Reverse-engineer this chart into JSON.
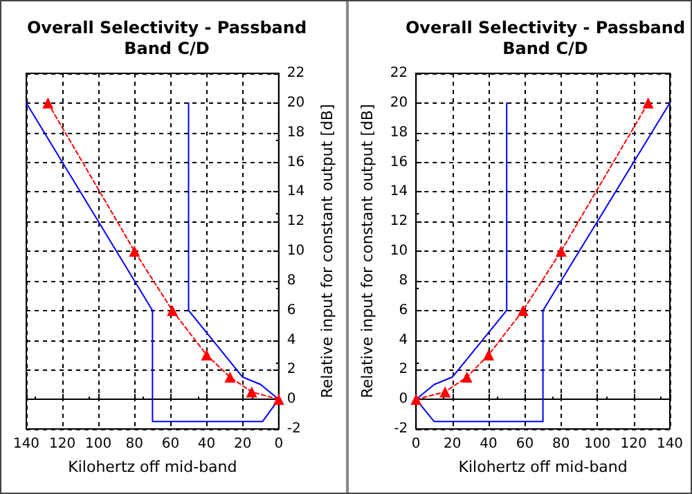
{
  "chart_data": [
    {
      "type": "line",
      "title": "Overall Selectivity - Passband",
      "subtitle": "Band C/D",
      "xlabel": "Kilohertz off mid-band",
      "ylabel": "Relative input for constant output [dB]",
      "xlim": [
        140,
        0
      ],
      "xticks": [
        140,
        120,
        100,
        80,
        60,
        40,
        20,
        0
      ],
      "ylim": [
        -2,
        22
      ],
      "yticks": [
        -2,
        0,
        2,
        4,
        6,
        8,
        10,
        12,
        14,
        16,
        18,
        20,
        22
      ],
      "grid": true,
      "series": [
        {
          "color": "#0000ff",
          "marker": "none",
          "line_style": "solid",
          "x": [
            50,
            50,
            20,
            10,
            0,
            9,
            70,
            70,
            140
          ],
          "values": [
            20,
            6,
            1.5,
            1,
            0,
            -1.5,
            -1.5,
            6,
            20
          ]
        },
        {
          "color": "#ff0000",
          "marker": "triangle",
          "line_style": "dashed",
          "x": [
            0,
            15,
            27,
            40,
            59,
            80,
            128
          ],
          "values": [
            0,
            0.5,
            1.5,
            3,
            6,
            10,
            20
          ]
        }
      ]
    },
    {
      "type": "line",
      "title": "Overall Selectivity - Passband",
      "subtitle": "Band C/D",
      "xlabel": "Kilohertz off mid-band",
      "ylabel": "Relative input for constant output [dB]",
      "xlim": [
        0,
        140
      ],
      "xticks": [
        0,
        20,
        40,
        60,
        80,
        100,
        120,
        140
      ],
      "ylim": [
        -2,
        22
      ],
      "yticks": [
        -2,
        0,
        2,
        4,
        6,
        8,
        10,
        12,
        14,
        16,
        18,
        20,
        22
      ],
      "grid": true,
      "series": [
        {
          "color": "#0000ff",
          "marker": "none",
          "line_style": "solid",
          "x": [
            50,
            50,
            20,
            10,
            0,
            10,
            70,
            70,
            140
          ],
          "values": [
            20,
            6,
            1.5,
            1,
            0,
            -1.5,
            -1.5,
            6,
            20
          ]
        },
        {
          "color": "#ff0000",
          "marker": "triangle",
          "line_style": "dashed",
          "x": [
            0,
            16,
            28,
            40,
            59,
            80,
            128
          ],
          "values": [
            0,
            0.5,
            1.5,
            3,
            6,
            10,
            20
          ]
        }
      ]
    }
  ]
}
